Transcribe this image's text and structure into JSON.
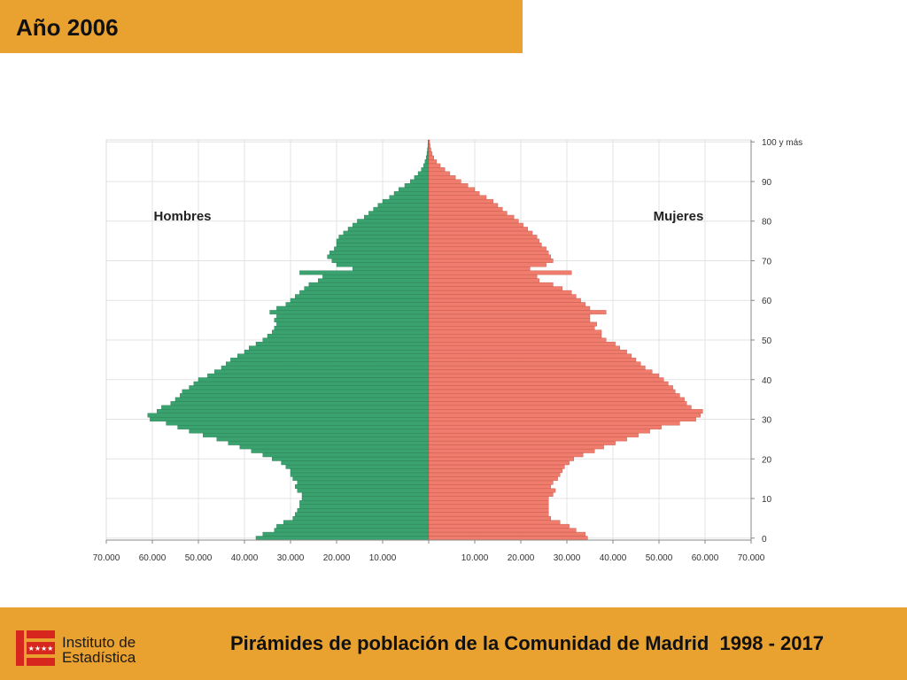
{
  "header": {
    "title": "Año 2006"
  },
  "footer": {
    "logo_line1": "Instituto de",
    "logo_line2": "Estadística",
    "title": "Pirámides de población de la Comunidad de Madrid  1998 - 2017"
  },
  "colors": {
    "accent": "#e9a12f",
    "men": "#3aa26f",
    "women": "#ef7c6c"
  },
  "chart_data": {
    "type": "bar",
    "orientation": "population-pyramid",
    "label_left": "Hombres",
    "label_right": "Mujeres",
    "ages": [
      0,
      1,
      2,
      3,
      4,
      5,
      6,
      7,
      8,
      9,
      10,
      11,
      12,
      13,
      14,
      15,
      16,
      17,
      18,
      19,
      20,
      21,
      22,
      23,
      24,
      25,
      26,
      27,
      28,
      29,
      30,
      31,
      32,
      33,
      34,
      35,
      36,
      37,
      38,
      39,
      40,
      41,
      42,
      43,
      44,
      45,
      46,
      47,
      48,
      49,
      50,
      51,
      52,
      53,
      54,
      55,
      56,
      57,
      58,
      59,
      60,
      61,
      62,
      63,
      64,
      65,
      66,
      67,
      68,
      69,
      70,
      71,
      72,
      73,
      74,
      75,
      76,
      77,
      78,
      79,
      80,
      81,
      82,
      83,
      84,
      85,
      86,
      87,
      88,
      89,
      90,
      91,
      92,
      93,
      94,
      95,
      96,
      97,
      98,
      99,
      100
    ],
    "y_tick_labels": [
      "0",
      "10",
      "20",
      "30",
      "40",
      "50",
      "60",
      "70",
      "80",
      "90",
      "100 y más"
    ],
    "x_tick_labels_left": [
      "70.000",
      "60.000",
      "50.000",
      "40.000",
      "30.000",
      "20.000",
      "10.000"
    ],
    "x_tick_labels_right": [
      "10.000",
      "20.000",
      "30.000",
      "40.000",
      "50.000",
      "60.000",
      "70.000"
    ],
    "xlim": [
      0,
      70000
    ],
    "series": [
      {
        "name": "Hombres",
        "values": [
          37500,
          36000,
          33500,
          33000,
          31500,
          29500,
          29000,
          28500,
          28000,
          28000,
          27500,
          27500,
          28500,
          29000,
          28500,
          29500,
          30000,
          30000,
          31000,
          32000,
          34000,
          36000,
          38500,
          41000,
          43500,
          46000,
          49000,
          52000,
          54500,
          57000,
          60500,
          61000,
          59000,
          58000,
          56000,
          55000,
          54000,
          53500,
          52000,
          51000,
          50000,
          48000,
          46500,
          45000,
          44000,
          43000,
          41500,
          40000,
          39000,
          37500,
          36000,
          35000,
          34000,
          33500,
          33000,
          33500,
          33000,
          34500,
          33000,
          31000,
          30000,
          29000,
          28000,
          27000,
          26000,
          24000,
          23000,
          28000,
          16500,
          20000,
          21000,
          22000,
          21500,
          20500,
          20000,
          20000,
          19500,
          18500,
          17500,
          16500,
          15500,
          14000,
          13000,
          12000,
          11000,
          10000,
          8500,
          7500,
          6500,
          5200,
          4000,
          3100,
          2300,
          1600,
          1100,
          800,
          550,
          380,
          280,
          180,
          130
        ]
      },
      {
        "name": "Mujeres",
        "values": [
          34500,
          34000,
          32000,
          30500,
          28500,
          26500,
          26000,
          26000,
          26000,
          26000,
          26000,
          27000,
          27500,
          26500,
          27000,
          28000,
          28500,
          29000,
          29500,
          30500,
          31500,
          33500,
          36000,
          38000,
          40500,
          43000,
          45500,
          48000,
          50500,
          54500,
          58000,
          59000,
          59500,
          57000,
          56000,
          55500,
          54500,
          53500,
          53000,
          52000,
          51000,
          50000,
          48500,
          47000,
          46000,
          45000,
          44000,
          43000,
          41500,
          40500,
          38500,
          37500,
          37500,
          36000,
          36500,
          35000,
          35000,
          38500,
          35000,
          34000,
          33000,
          32000,
          31000,
          29000,
          27000,
          24000,
          23500,
          31000,
          22000,
          25500,
          27000,
          26500,
          26000,
          25500,
          24500,
          24000,
          23500,
          22500,
          21500,
          20500,
          19500,
          18500,
          17000,
          16000,
          15000,
          14000,
          12500,
          11000,
          10000,
          8500,
          7000,
          5800,
          4600,
          3500,
          2500,
          1700,
          1100,
          750,
          480,
          300,
          200
        ]
      }
    ]
  }
}
